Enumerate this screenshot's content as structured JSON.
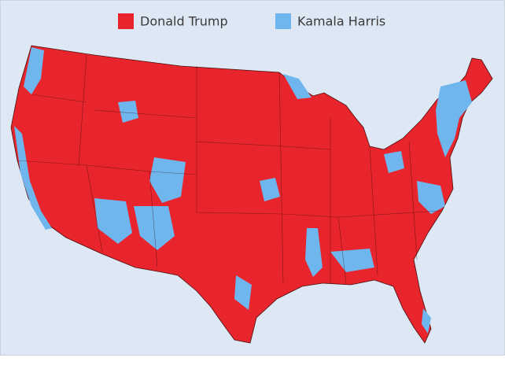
{
  "legend": [
    {
      "label": "Donald Trump",
      "color": "#e8242c"
    },
    {
      "label": "Kamala Harris",
      "color": "#6fb6ee"
    }
  ]
}
